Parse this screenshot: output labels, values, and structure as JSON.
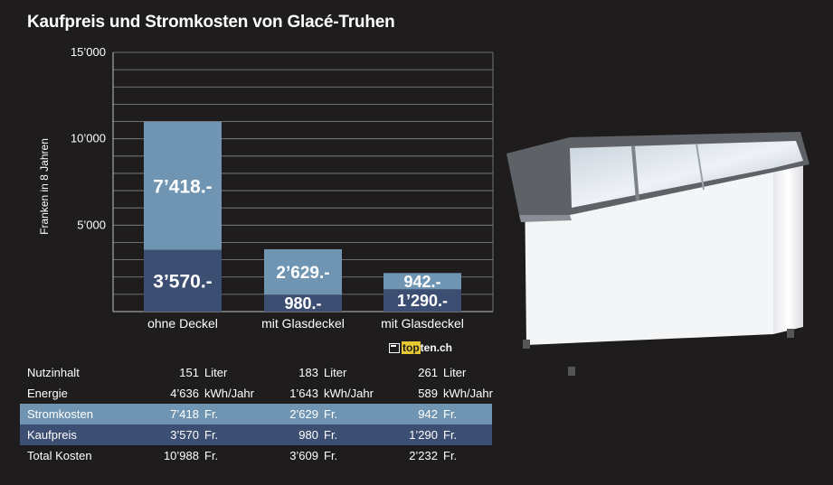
{
  "title": "Kaufpreis und Stromkosten von Glacé-Truhen",
  "logo": {
    "prefix": "top",
    "suffix": "ten.ch"
  },
  "chart_data": {
    "type": "bar",
    "stacked": true,
    "ylabel": "Franken in 8 Jahren",
    "ylim": [
      0,
      15000
    ],
    "yticks": [
      5000,
      10000,
      15000
    ],
    "ytick_labels": [
      "5’000",
      "10’000",
      "15’000"
    ],
    "grid": true,
    "categories": [
      "ohne Deckel",
      "mit Glasdeckel",
      "mit Glasdeckel"
    ],
    "series": [
      {
        "name": "Kaufpreis",
        "color": "#3c4e72",
        "values": [
          3570,
          980,
          1290
        ],
        "labels": [
          "3’570.-",
          "980.-",
          "1’290.-"
        ]
      },
      {
        "name": "Stromkosten",
        "color": "#6f95b2",
        "values": [
          7418,
          2629,
          942
        ],
        "labels": [
          "7’418.-",
          "2’629.-",
          "942.-"
        ]
      }
    ]
  },
  "table": {
    "rows": [
      {
        "label": "Nutzinhalt",
        "style": "plain",
        "cells": [
          {
            "v": "151",
            "u": "Liter"
          },
          {
            "v": "183",
            "u": "Liter"
          },
          {
            "v": "261",
            "u": "Liter"
          }
        ]
      },
      {
        "label": "Energie",
        "style": "plain",
        "cells": [
          {
            "v": "4’636",
            "u": "kWh/Jahr"
          },
          {
            "v": "1’643",
            "u": "kWh/Jahr"
          },
          {
            "v": "589",
            "u": "kWh/Jahr"
          }
        ]
      },
      {
        "label": "Stromkosten",
        "style": "blue",
        "cells": [
          {
            "v": "7’418",
            "u": "Fr."
          },
          {
            "v": "2’629",
            "u": "Fr."
          },
          {
            "v": "942",
            "u": "Fr."
          }
        ]
      },
      {
        "label": "Kaufpreis",
        "style": "navy",
        "cells": [
          {
            "v": "3’570",
            "u": "Fr."
          },
          {
            "v": "980",
            "u": "Fr."
          },
          {
            "v": "1’290",
            "u": "Fr."
          }
        ]
      },
      {
        "label": "Total Kosten",
        "style": "plain",
        "cells": [
          {
            "v": "10’988",
            "u": "Fr."
          },
          {
            "v": "3’609",
            "u": "Fr."
          },
          {
            "v": "2’232",
            "u": "Fr."
          }
        ]
      }
    ]
  }
}
